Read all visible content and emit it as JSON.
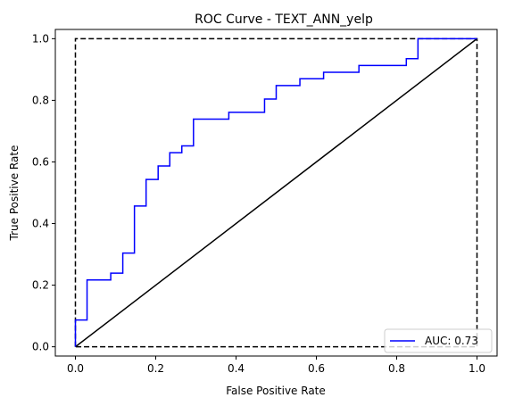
{
  "chart_data": {
    "type": "line",
    "title": "ROC Curve - TEXT_ANN_yelp",
    "xlabel": "False Positive Rate",
    "ylabel": "True Positive Rate",
    "xlim": [
      -0.05,
      1.05
    ],
    "ylim": [
      -0.03,
      1.03
    ],
    "xticks": [
      0.0,
      0.2,
      0.4,
      0.6,
      0.8,
      1.0
    ],
    "yticks": [
      0.0,
      0.2,
      0.4,
      0.6,
      0.8,
      1.0
    ],
    "xtick_labels": [
      "0.0",
      "0.2",
      "0.4",
      "0.6",
      "0.8",
      "1.0"
    ],
    "ytick_labels": [
      "0.0",
      "0.2",
      "0.4",
      "0.6",
      "0.8",
      "1.0"
    ],
    "grid": false,
    "legend_position": "lower-right",
    "series": [
      {
        "name": "AUC: 0.73",
        "color": "#0000ff",
        "style": "solid",
        "x": [
          0.0,
          0.0,
          0.029,
          0.029,
          0.088,
          0.088,
          0.118,
          0.118,
          0.147,
          0.147,
          0.176,
          0.176,
          0.206,
          0.206,
          0.235,
          0.235,
          0.265,
          0.265,
          0.294,
          0.294,
          0.382,
          0.382,
          0.471,
          0.471,
          0.5,
          0.5,
          0.559,
          0.559,
          0.618,
          0.618,
          0.706,
          0.706,
          0.824,
          0.824,
          0.853,
          0.853,
          1.0
        ],
        "y": [
          0.0,
          0.087,
          0.087,
          0.217,
          0.217,
          0.239,
          0.239,
          0.304,
          0.304,
          0.457,
          0.457,
          0.543,
          0.543,
          0.587,
          0.587,
          0.63,
          0.63,
          0.652,
          0.652,
          0.739,
          0.739,
          0.761,
          0.761,
          0.804,
          0.804,
          0.848,
          0.848,
          0.87,
          0.87,
          0.891,
          0.891,
          0.913,
          0.913,
          0.935,
          0.935,
          1.0,
          1.0
        ]
      },
      {
        "color": "#000000",
        "style": "solid",
        "x": [
          0.0,
          1.0
        ],
        "y": [
          0.0,
          1.0
        ]
      },
      {
        "color": "#000000",
        "style": "dashed",
        "x": [
          0.0,
          0.0,
          1.0,
          1.0,
          0.0
        ],
        "y": [
          0.0,
          1.0,
          1.0,
          0.0,
          0.0
        ]
      }
    ]
  }
}
